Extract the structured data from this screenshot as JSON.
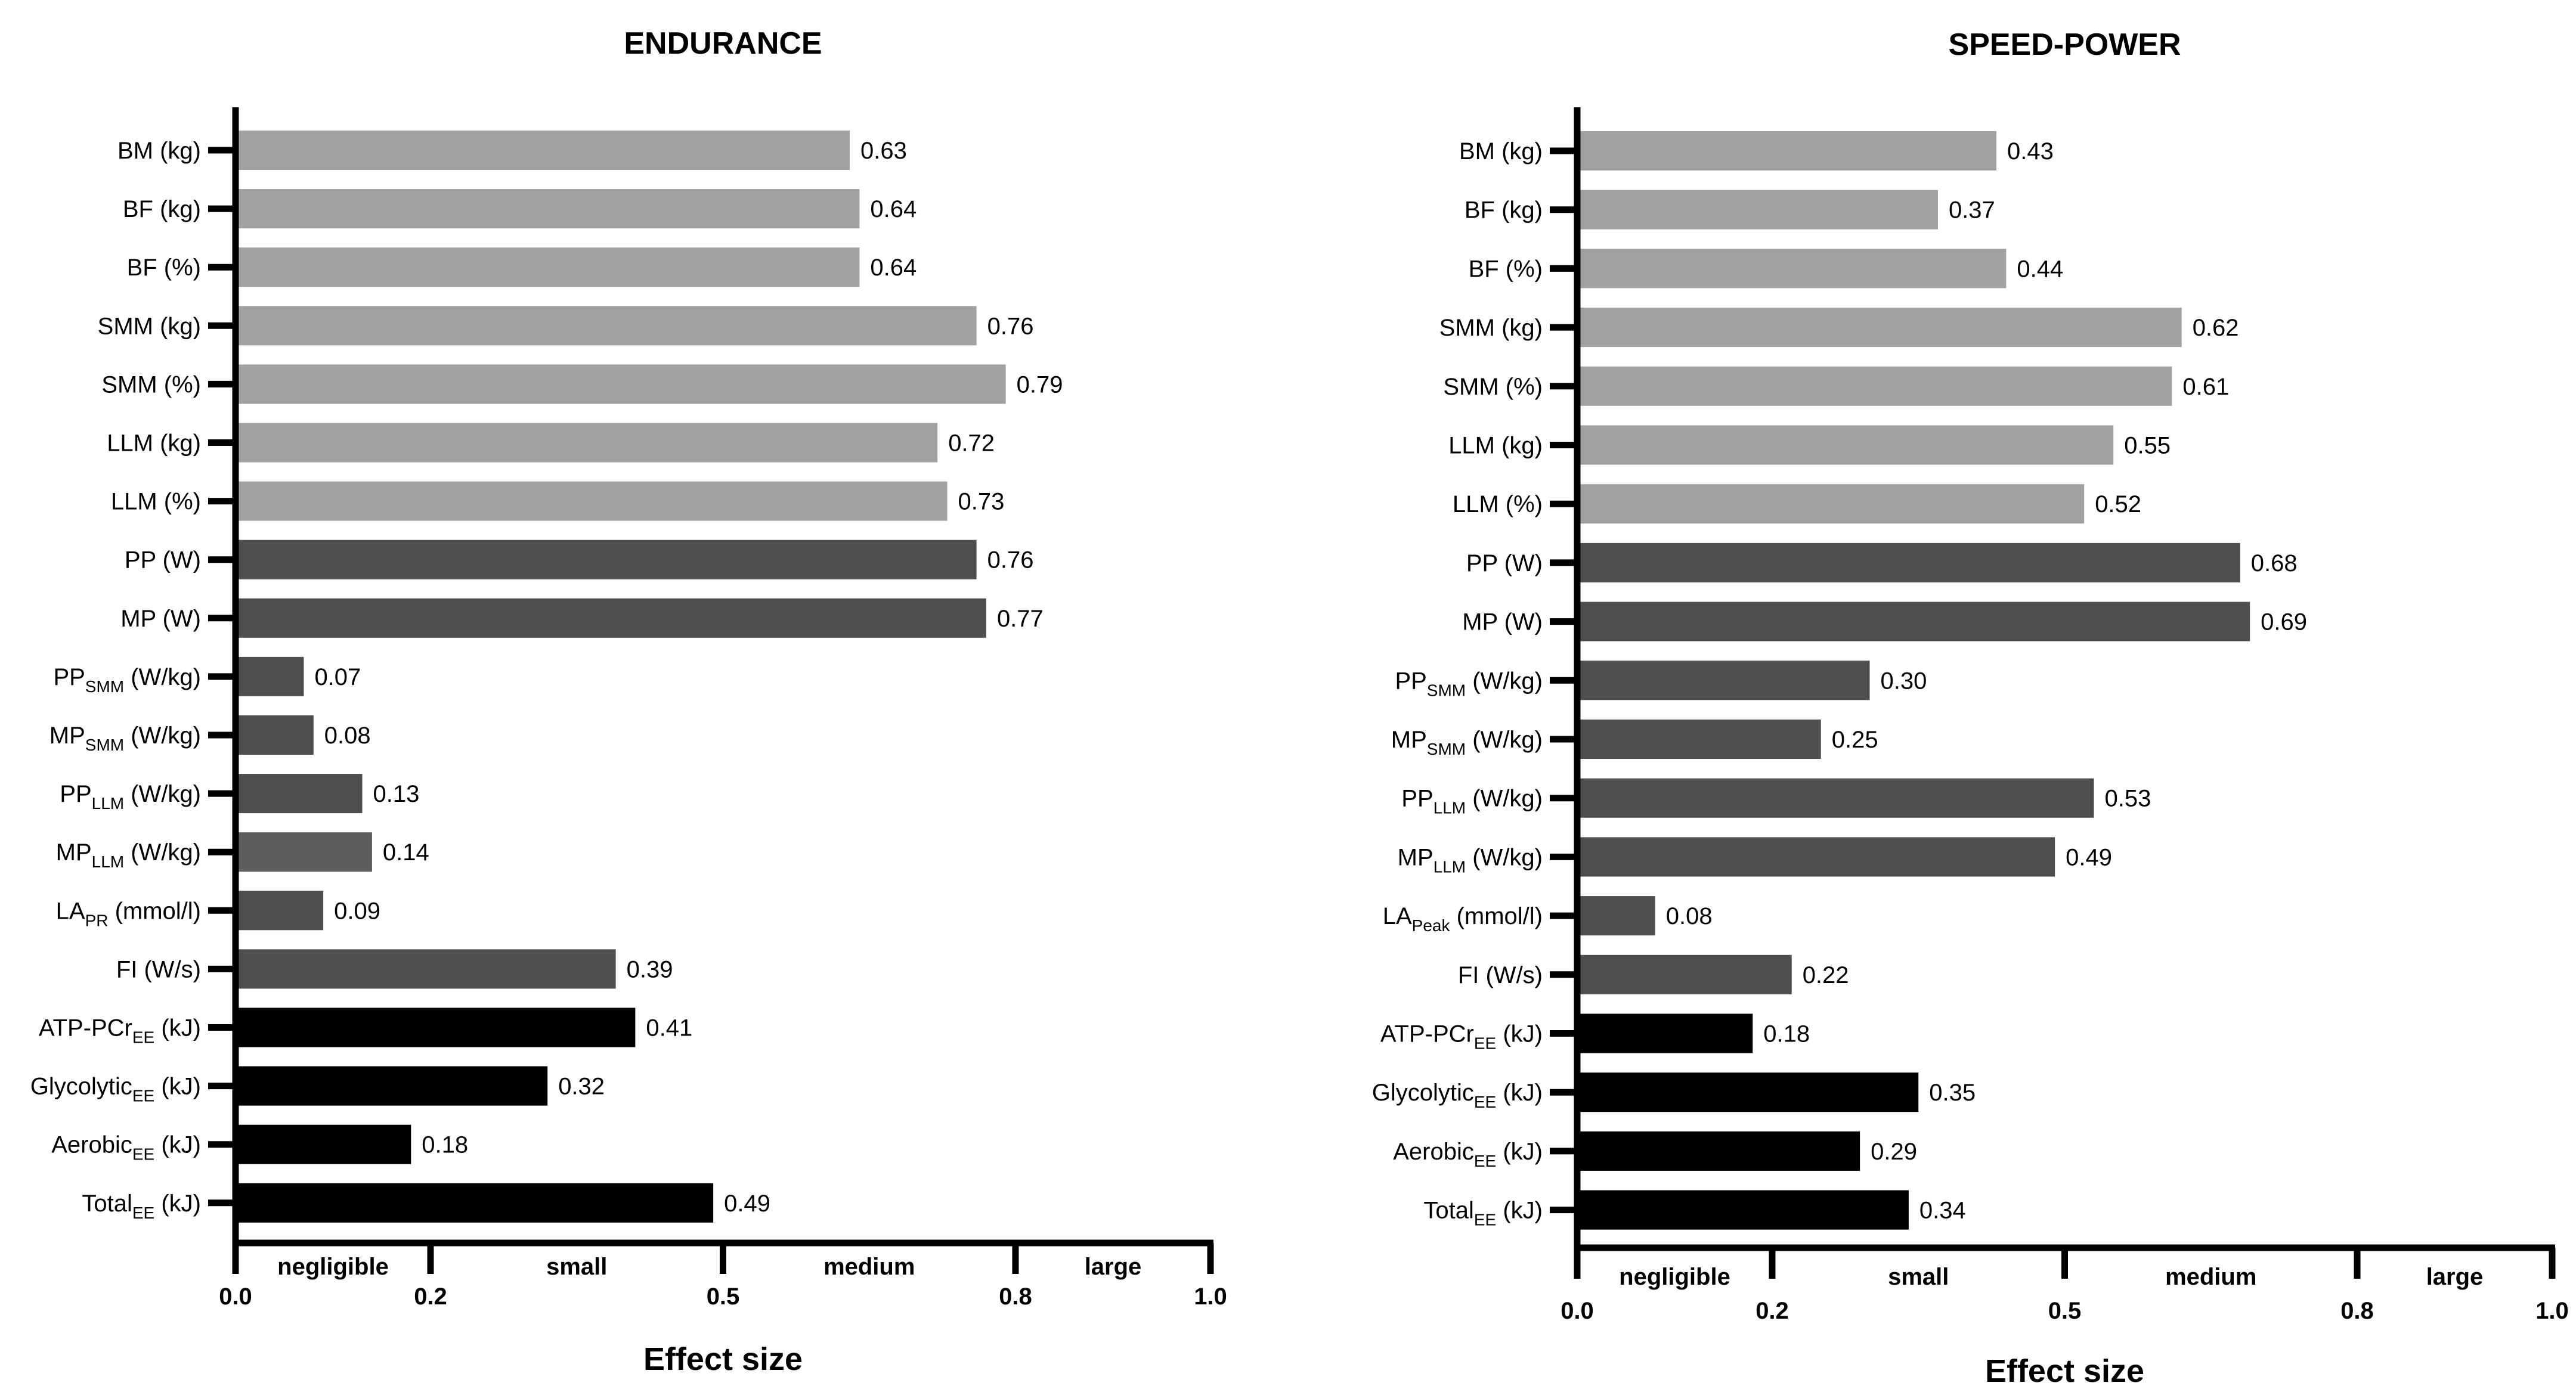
{
  "chart_data": [
    {
      "type": "bar",
      "orientation": "horizontal",
      "title": "ENDURANCE",
      "xlabel": "Effect size",
      "ylabel": "",
      "xlim": [
        0,
        1
      ],
      "xticks": [
        "0.0",
        "0.2",
        "0.5",
        "0.8",
        "1.0"
      ],
      "xtick_values": [
        0,
        0.2,
        0.5,
        0.8,
        1.0
      ],
      "bands": [
        {
          "label": "negligible",
          "from": 0,
          "to": 0.2
        },
        {
          "label": "small",
          "from": 0.2,
          "to": 0.5
        },
        {
          "label": "medium",
          "from": 0.5,
          "to": 0.8
        },
        {
          "label": "large",
          "from": 0.8,
          "to": 1.0
        }
      ],
      "bars": [
        {
          "main": "BM (kg)",
          "sub": "",
          "unit": "",
          "value": 0.63,
          "label": "0.63",
          "group": "body",
          "color": "#a0a1a3"
        },
        {
          "main": "BF (kg)",
          "sub": "",
          "unit": "",
          "value": 0.64,
          "label": "0.64",
          "group": "body",
          "color": "#a0a1a3"
        },
        {
          "main": "BF (%)",
          "sub": "",
          "unit": "",
          "value": 0.64,
          "label": "0.64",
          "group": "body",
          "color": "#a0a1a3"
        },
        {
          "main": "SMM (kg)",
          "sub": "",
          "unit": "",
          "value": 0.76,
          "label": "0.76",
          "group": "body",
          "color": "#a0a1a3"
        },
        {
          "main": "SMM (%)",
          "sub": "",
          "unit": "",
          "value": 0.79,
          "label": "0.79",
          "group": "body",
          "color": "#a0a1a3"
        },
        {
          "main": "LLM (kg)",
          "sub": "",
          "unit": "",
          "value": 0.72,
          "label": "0.72",
          "group": "body",
          "color": "#a0a1a3"
        },
        {
          "main": "LLM (%)",
          "sub": "",
          "unit": "",
          "value": 0.73,
          "label": "0.73",
          "group": "body",
          "color": "#a0a1a3"
        },
        {
          "main": "PP (W)",
          "sub": "",
          "unit": "",
          "value": 0.76,
          "label": "0.76",
          "group": "performance",
          "color": "#4d4e50"
        },
        {
          "main": "MP (W)",
          "sub": "",
          "unit": "",
          "value": 0.77,
          "label": "0.77",
          "group": "performance",
          "color": "#4d4e50"
        },
        {
          "main": "PP",
          "sub": "SMM",
          "unit": " (W/kg)",
          "value": 0.07,
          "label": "0.07",
          "group": "performance",
          "color": "#4d4e50"
        },
        {
          "main": "MP",
          "sub": "SMM",
          "unit": " (W/kg)",
          "value": 0.08,
          "label": "0.08",
          "group": "performance",
          "color": "#4d4e50"
        },
        {
          "main": "PP",
          "sub": "LLM",
          "unit": " (W/kg)",
          "value": 0.13,
          "label": "0.13",
          "group": "performance",
          "color": "#4d4e50"
        },
        {
          "main": "MP",
          "sub": "LLM",
          "unit": " (W/kg)",
          "value": 0.14,
          "label": "0.14",
          "group": "performance",
          "color": "#5c5d5f"
        },
        {
          "main": "LA",
          "sub": "PR",
          "unit": " (mmol/l)",
          "value": 0.09,
          "label": "0.09",
          "group": "performance",
          "color": "#4d4e50"
        },
        {
          "main": "FI (W/s)",
          "sub": "",
          "unit": "",
          "value": 0.39,
          "label": "0.39",
          "group": "performance",
          "color": "#4d4e50"
        },
        {
          "main": "ATP-PCr",
          "sub": "EE",
          "unit": " (kJ)",
          "value": 0.41,
          "label": "0.41",
          "group": "energy",
          "color": "#000000"
        },
        {
          "main": "Glycolytic",
          "sub": "EE",
          "unit": " (kJ)",
          "value": 0.32,
          "label": "0.32",
          "group": "energy",
          "color": "#000000"
        },
        {
          "main": "Aerobic",
          "sub": "EE",
          "unit": " (kJ)",
          "value": 0.18,
          "label": "0.18",
          "group": "energy",
          "color": "#000000"
        },
        {
          "main": "Total",
          "sub": "EE",
          "unit": " (kJ)",
          "value": 0.49,
          "label": "0.49",
          "group": "energy",
          "color": "#000000"
        }
      ]
    },
    {
      "type": "bar",
      "orientation": "horizontal",
      "title": "SPEED-POWER",
      "xlabel": "Effect size",
      "ylabel": "",
      "xlim": [
        0,
        1
      ],
      "xticks": [
        "0.0",
        "0.2",
        "0.5",
        "0.8",
        "1.0"
      ],
      "xtick_values": [
        0,
        0.2,
        0.5,
        0.8,
        1.0
      ],
      "bands": [
        {
          "label": "negligible",
          "from": 0,
          "to": 0.2
        },
        {
          "label": "small",
          "from": 0.2,
          "to": 0.5
        },
        {
          "label": "medium",
          "from": 0.5,
          "to": 0.8
        },
        {
          "label": "large",
          "from": 0.8,
          "to": 1.0
        }
      ],
      "bars": [
        {
          "main": "BM (kg)",
          "sub": "",
          "unit": "",
          "value": 0.43,
          "label": "0.43",
          "group": "body",
          "color": "#a0a1a3"
        },
        {
          "main": "BF (kg)",
          "sub": "",
          "unit": "",
          "value": 0.37,
          "label": "0.37",
          "group": "body",
          "color": "#a0a1a3"
        },
        {
          "main": "BF (%)",
          "sub": "",
          "unit": "",
          "value": 0.44,
          "label": "0.44",
          "group": "body",
          "color": "#a0a1a3"
        },
        {
          "main": "SMM (kg)",
          "sub": "",
          "unit": "",
          "value": 0.62,
          "label": "0.62",
          "group": "body",
          "color": "#a0a1a3"
        },
        {
          "main": "SMM (%)",
          "sub": "",
          "unit": "",
          "value": 0.61,
          "label": "0.61",
          "group": "body",
          "color": "#a0a1a3"
        },
        {
          "main": "LLM (kg)",
          "sub": "",
          "unit": "",
          "value": 0.55,
          "label": "0.55",
          "group": "body",
          "color": "#a0a1a3"
        },
        {
          "main": "LLM (%)",
          "sub": "",
          "unit": "",
          "value": 0.52,
          "label": "0.52",
          "group": "body",
          "color": "#a0a1a3"
        },
        {
          "main": "PP (W)",
          "sub": "",
          "unit": "",
          "value": 0.68,
          "label": "0.68",
          "group": "performance",
          "color": "#4d4e50"
        },
        {
          "main": "MP (W)",
          "sub": "",
          "unit": "",
          "value": 0.69,
          "label": "0.69",
          "group": "performance",
          "color": "#4d4e50"
        },
        {
          "main": "PP",
          "sub": "SMM",
          "unit": " (W/kg)",
          "value": 0.3,
          "label": "0.30",
          "group": "performance",
          "color": "#4d4e50"
        },
        {
          "main": "MP",
          "sub": "SMM",
          "unit": " (W/kg)",
          "value": 0.25,
          "label": "0.25",
          "group": "performance",
          "color": "#4d4e50"
        },
        {
          "main": "PP",
          "sub": "LLM",
          "unit": " (W/kg)",
          "value": 0.53,
          "label": "0.53",
          "group": "performance",
          "color": "#4d4e50"
        },
        {
          "main": "MP",
          "sub": "LLM",
          "unit": " (W/kg)",
          "value": 0.49,
          "label": "0.49",
          "group": "performance",
          "color": "#4d4e50"
        },
        {
          "main": "LA",
          "sub": "Peak",
          "unit": " (mmol/l)",
          "value": 0.08,
          "label": "0.08",
          "group": "performance",
          "color": "#4d4e50"
        },
        {
          "main": "FI (W/s)",
          "sub": "",
          "unit": "",
          "value": 0.22,
          "label": "0.22",
          "group": "performance",
          "color": "#4d4e50"
        },
        {
          "main": "ATP-PCr",
          "sub": "EE",
          "unit": " (kJ)",
          "value": 0.18,
          "label": "0.18",
          "group": "energy",
          "color": "#000000"
        },
        {
          "main": "Glycolytic",
          "sub": "EE",
          "unit": " (kJ)",
          "value": 0.35,
          "label": "0.35",
          "group": "energy",
          "color": "#000000"
        },
        {
          "main": "Aerobic",
          "sub": "EE",
          "unit": " (kJ)",
          "value": 0.29,
          "label": "0.29",
          "group": "energy",
          "color": "#000000"
        },
        {
          "main": "Total",
          "sub": "EE",
          "unit": " (kJ)",
          "value": 0.34,
          "label": "0.34",
          "group": "energy",
          "color": "#000000"
        }
      ]
    }
  ]
}
